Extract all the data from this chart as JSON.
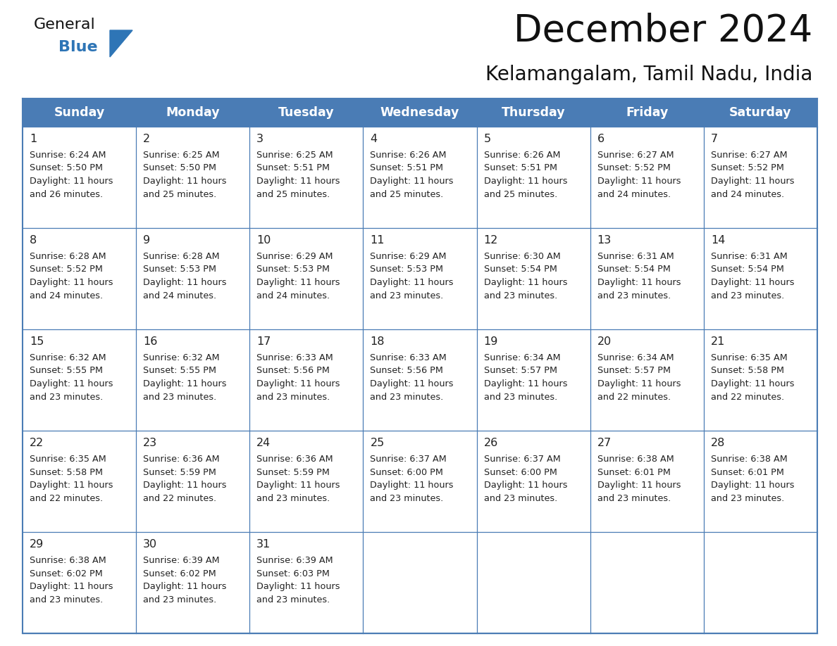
{
  "title": "December 2024",
  "subtitle": "Kelamangalam, Tamil Nadu, India",
  "header_bg": "#4a7cb5",
  "header_text_color": "#FFFFFF",
  "header_font_size": 12.5,
  "day_names": [
    "Sunday",
    "Monday",
    "Tuesday",
    "Wednesday",
    "Thursday",
    "Friday",
    "Saturday"
  ],
  "title_font_size": 38,
  "subtitle_font_size": 20,
  "cell_text_color": "#222222",
  "cell_day_font_size": 11.5,
  "cell_info_font_size": 9.2,
  "grid_color": "#4a7cb5",
  "logo_general_color": "#111111",
  "logo_blue_color": "#2E75B6",
  "weeks": [
    [
      {
        "day": 1,
        "sunrise": "6:24 AM",
        "sunset": "5:50 PM",
        "daylight": "11 hours and 26 minutes."
      },
      {
        "day": 2,
        "sunrise": "6:25 AM",
        "sunset": "5:50 PM",
        "daylight": "11 hours and 25 minutes."
      },
      {
        "day": 3,
        "sunrise": "6:25 AM",
        "sunset": "5:51 PM",
        "daylight": "11 hours and 25 minutes."
      },
      {
        "day": 4,
        "sunrise": "6:26 AM",
        "sunset": "5:51 PM",
        "daylight": "11 hours and 25 minutes."
      },
      {
        "day": 5,
        "sunrise": "6:26 AM",
        "sunset": "5:51 PM",
        "daylight": "11 hours and 25 minutes."
      },
      {
        "day": 6,
        "sunrise": "6:27 AM",
        "sunset": "5:52 PM",
        "daylight": "11 hours and 24 minutes."
      },
      {
        "day": 7,
        "sunrise": "6:27 AM",
        "sunset": "5:52 PM",
        "daylight": "11 hours and 24 minutes."
      }
    ],
    [
      {
        "day": 8,
        "sunrise": "6:28 AM",
        "sunset": "5:52 PM",
        "daylight": "11 hours and 24 minutes."
      },
      {
        "day": 9,
        "sunrise": "6:28 AM",
        "sunset": "5:53 PM",
        "daylight": "11 hours and 24 minutes."
      },
      {
        "day": 10,
        "sunrise": "6:29 AM",
        "sunset": "5:53 PM",
        "daylight": "11 hours and 24 minutes."
      },
      {
        "day": 11,
        "sunrise": "6:29 AM",
        "sunset": "5:53 PM",
        "daylight": "11 hours and 23 minutes."
      },
      {
        "day": 12,
        "sunrise": "6:30 AM",
        "sunset": "5:54 PM",
        "daylight": "11 hours and 23 minutes."
      },
      {
        "day": 13,
        "sunrise": "6:31 AM",
        "sunset": "5:54 PM",
        "daylight": "11 hours and 23 minutes."
      },
      {
        "day": 14,
        "sunrise": "6:31 AM",
        "sunset": "5:54 PM",
        "daylight": "11 hours and 23 minutes."
      }
    ],
    [
      {
        "day": 15,
        "sunrise": "6:32 AM",
        "sunset": "5:55 PM",
        "daylight": "11 hours and 23 minutes."
      },
      {
        "day": 16,
        "sunrise": "6:32 AM",
        "sunset": "5:55 PM",
        "daylight": "11 hours and 23 minutes."
      },
      {
        "day": 17,
        "sunrise": "6:33 AM",
        "sunset": "5:56 PM",
        "daylight": "11 hours and 23 minutes."
      },
      {
        "day": 18,
        "sunrise": "6:33 AM",
        "sunset": "5:56 PM",
        "daylight": "11 hours and 23 minutes."
      },
      {
        "day": 19,
        "sunrise": "6:34 AM",
        "sunset": "5:57 PM",
        "daylight": "11 hours and 23 minutes."
      },
      {
        "day": 20,
        "sunrise": "6:34 AM",
        "sunset": "5:57 PM",
        "daylight": "11 hours and 22 minutes."
      },
      {
        "day": 21,
        "sunrise": "6:35 AM",
        "sunset": "5:58 PM",
        "daylight": "11 hours and 22 minutes."
      }
    ],
    [
      {
        "day": 22,
        "sunrise": "6:35 AM",
        "sunset": "5:58 PM",
        "daylight": "11 hours and 22 minutes."
      },
      {
        "day": 23,
        "sunrise": "6:36 AM",
        "sunset": "5:59 PM",
        "daylight": "11 hours and 22 minutes."
      },
      {
        "day": 24,
        "sunrise": "6:36 AM",
        "sunset": "5:59 PM",
        "daylight": "11 hours and 23 minutes."
      },
      {
        "day": 25,
        "sunrise": "6:37 AM",
        "sunset": "6:00 PM",
        "daylight": "11 hours and 23 minutes."
      },
      {
        "day": 26,
        "sunrise": "6:37 AM",
        "sunset": "6:00 PM",
        "daylight": "11 hours and 23 minutes."
      },
      {
        "day": 27,
        "sunrise": "6:38 AM",
        "sunset": "6:01 PM",
        "daylight": "11 hours and 23 minutes."
      },
      {
        "day": 28,
        "sunrise": "6:38 AM",
        "sunset": "6:01 PM",
        "daylight": "11 hours and 23 minutes."
      }
    ],
    [
      {
        "day": 29,
        "sunrise": "6:38 AM",
        "sunset": "6:02 PM",
        "daylight": "11 hours and 23 minutes."
      },
      {
        "day": 30,
        "sunrise": "6:39 AM",
        "sunset": "6:02 PM",
        "daylight": "11 hours and 23 minutes."
      },
      {
        "day": 31,
        "sunrise": "6:39 AM",
        "sunset": "6:03 PM",
        "daylight": "11 hours and 23 minutes."
      },
      null,
      null,
      null,
      null
    ]
  ]
}
